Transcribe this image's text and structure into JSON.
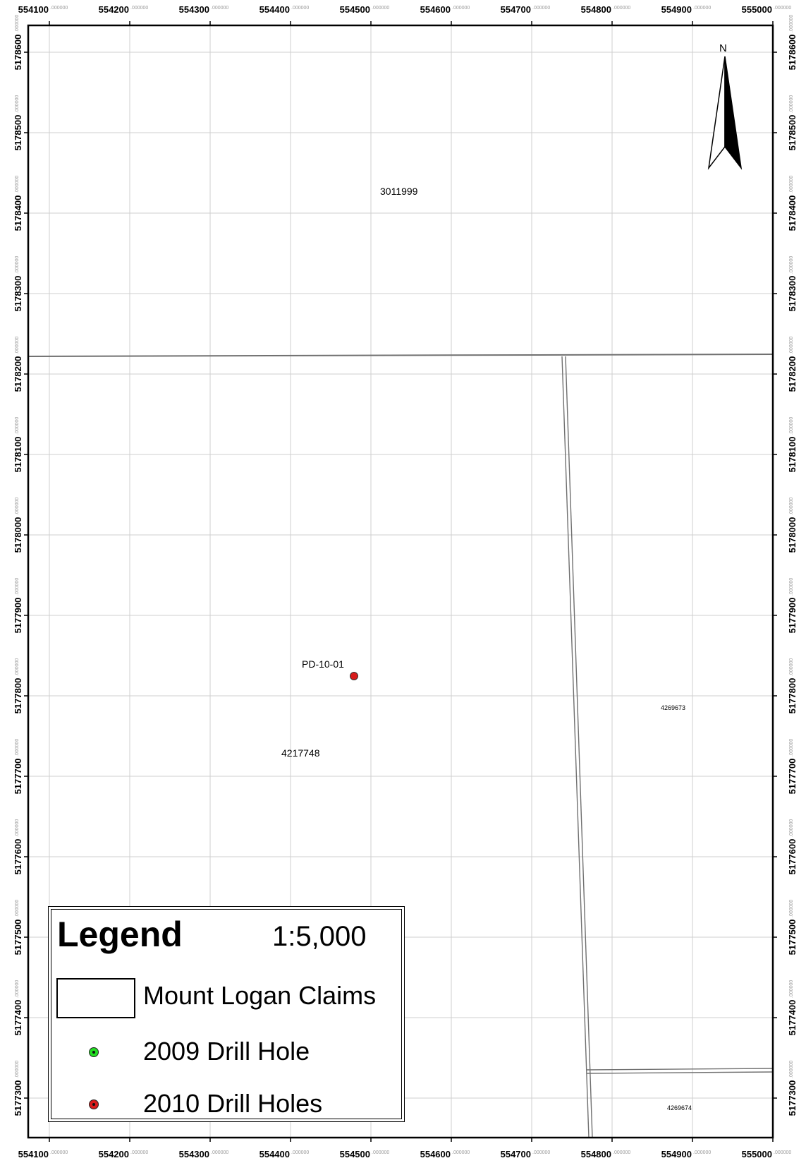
{
  "map": {
    "x_ticks": [
      "554100",
      "554200",
      "554300",
      "554400",
      "554500",
      "554600",
      "554700",
      "554800",
      "554900",
      "555000"
    ],
    "y_ticks": [
      "5178600",
      "5178500",
      "5178400",
      "5178300",
      "5178200",
      "5178100",
      "5178000",
      "5177900",
      "5177800",
      "5177700",
      "5177600",
      "5177500",
      "5177400",
      "5177300"
    ],
    "tick_decimal": ".000000",
    "north_label": "N",
    "claims": [
      {
        "id": "3011999"
      },
      {
        "id": "4217748"
      },
      {
        "id": "4269673"
      },
      {
        "id": "4269674"
      }
    ],
    "drill_holes": [
      {
        "label": "PD-10-01",
        "year": "2010",
        "easting": 554480,
        "northing": 5177820
      }
    ],
    "colors": {
      "drill_2010": "#d81b1b",
      "drill_2009": "#22dd22",
      "grid": "#cfcfcf",
      "claim_line": "#707070"
    }
  },
  "legend": {
    "title": "Legend",
    "scale": "1:5,000",
    "items": [
      {
        "label": "Mount Logan Claims",
        "symbol": "claim-box"
      },
      {
        "label": "2009 Drill Hole",
        "symbol": "green-dot"
      },
      {
        "label": "2010 Drill Holes",
        "symbol": "red-dot"
      }
    ]
  }
}
